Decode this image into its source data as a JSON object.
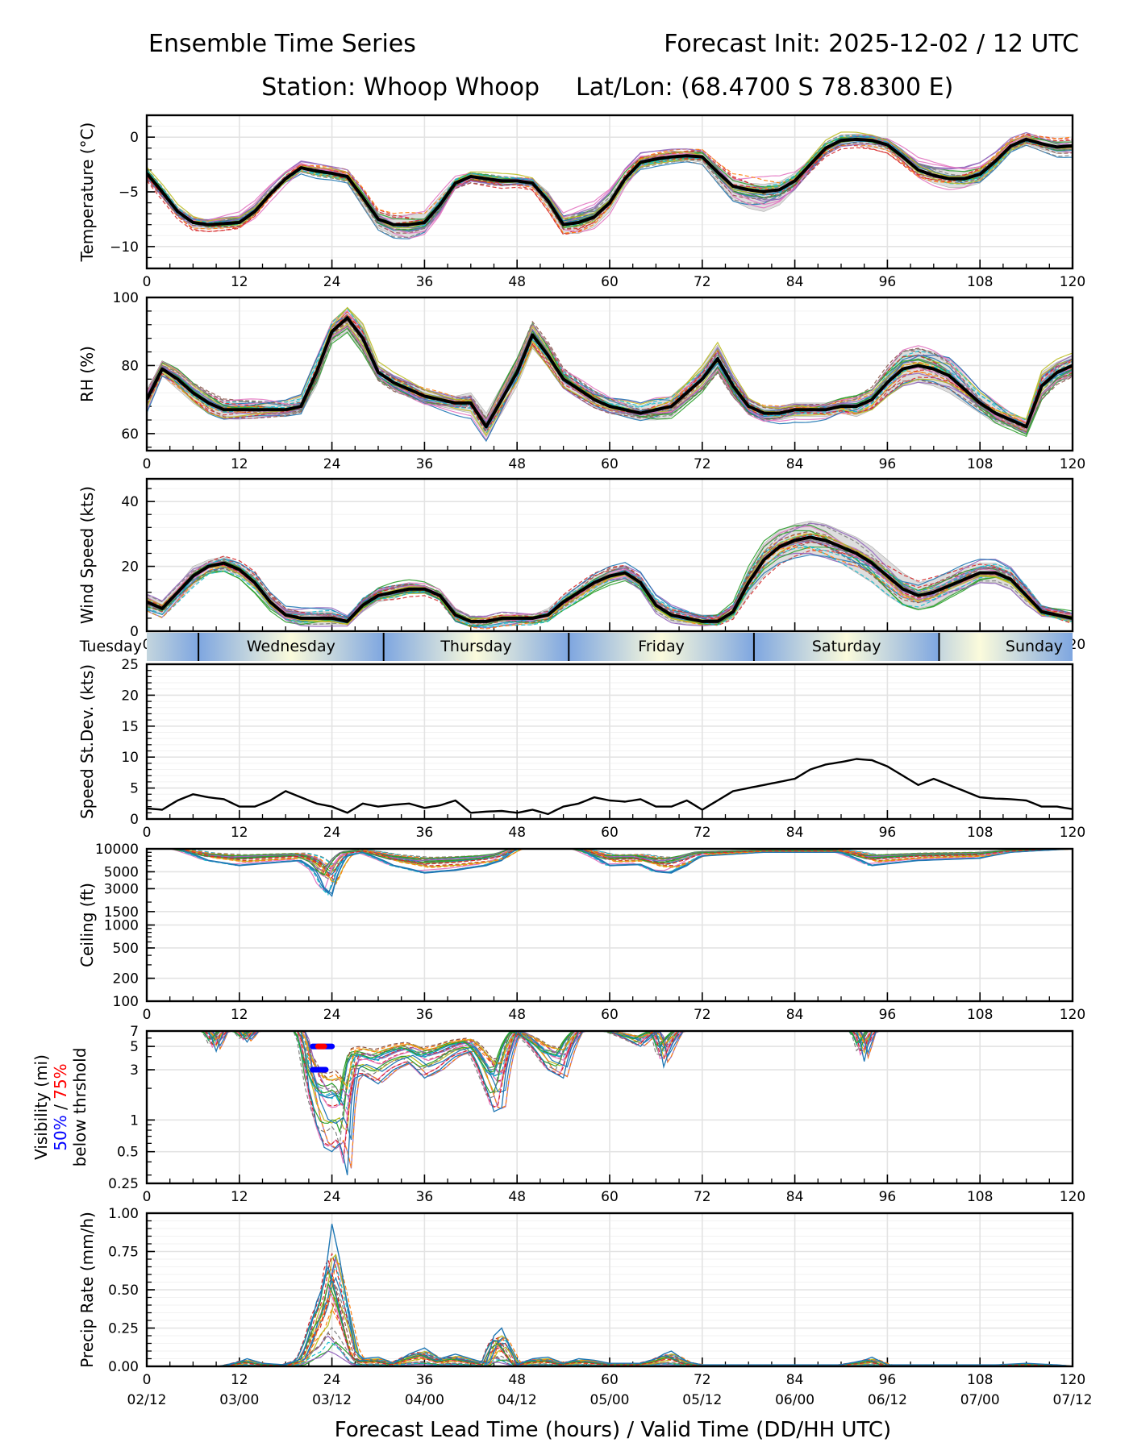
{
  "header": {
    "title_left": "Ensemble Time Series",
    "title_right": "Forecast Init: 2025-12-02 / 12 UTC",
    "station": "Station: Whoop Whoop",
    "latlon": "Lat/Lon: (68.4700 S 78.8300 E)"
  },
  "xaxis": {
    "title": "Forecast Lead Time (hours) / Valid Time (DD/HH UTC)",
    "ticks": [
      0,
      12,
      24,
      36,
      48,
      60,
      72,
      84,
      96,
      108,
      120
    ],
    "tick_labels": [
      "0",
      "12",
      "24",
      "36",
      "48",
      "60",
      "72",
      "84",
      "96",
      "108",
      "120"
    ],
    "valid_labels": [
      "02/12",
      "03/00",
      "03/12",
      "04/00",
      "04/12",
      "05/00",
      "05/12",
      "06/00",
      "06/12",
      "07/00",
      "07/12"
    ],
    "range": [
      0,
      120
    ]
  },
  "day_band": {
    "days": [
      {
        "name": "Tuesday",
        "start": 0,
        "end": 6.7
      },
      {
        "name": "Wednesday",
        "start": 6.7,
        "end": 30.7
      },
      {
        "name": "Thursday",
        "start": 30.7,
        "end": 54.7
      },
      {
        "name": "Friday",
        "start": 54.7,
        "end": 78.7
      },
      {
        "name": "Saturday",
        "start": 78.7,
        "end": 102.7
      },
      {
        "name": "Sunday",
        "start": 102.7,
        "end": 120
      }
    ],
    "night_color": "#7ea6e0",
    "day_color": "#fbfbdc"
  },
  "colors": {
    "mean": "#000000",
    "spread": "#d0d0d0",
    "members": [
      "#1f77b4",
      "#ff7f0e",
      "#2ca02c",
      "#d62728",
      "#9467bd",
      "#8c564b",
      "#e377c2",
      "#7f7f7f",
      "#bcbd22",
      "#17becf"
    ],
    "threshold50": "#0000ff",
    "threshold75": "#ff0000"
  },
  "chart_data": [
    {
      "type": "line",
      "name": "temperature",
      "ylabel": "Temperature (°C)",
      "ylim": [
        -12,
        2
      ],
      "yticks": [
        0,
        -5,
        -10
      ],
      "ytick_labels": [
        "0",
        "−5",
        "−10"
      ],
      "grid": true,
      "x": [
        0,
        2,
        4,
        6,
        8,
        10,
        12,
        14,
        16,
        18,
        20,
        22,
        24,
        26,
        28,
        30,
        32,
        34,
        36,
        38,
        40,
        42,
        44,
        46,
        48,
        50,
        52,
        54,
        56,
        58,
        60,
        62,
        64,
        66,
        68,
        70,
        72,
        74,
        76,
        78,
        80,
        82,
        84,
        86,
        88,
        90,
        92,
        94,
        96,
        98,
        100,
        102,
        104,
        106,
        108,
        110,
        112,
        114,
        116,
        118,
        120
      ],
      "mean": [
        -3.3,
        -5.0,
        -6.8,
        -7.8,
        -8.0,
        -7.9,
        -7.8,
        -6.8,
        -5.2,
        -3.8,
        -2.8,
        -3.1,
        -3.3,
        -3.6,
        -5.5,
        -7.5,
        -8.0,
        -8.0,
        -7.8,
        -6.2,
        -4.2,
        -3.6,
        -3.8,
        -4.0,
        -4.0,
        -4.2,
        -5.8,
        -8.0,
        -7.8,
        -7.3,
        -6.0,
        -3.8,
        -2.3,
        -2.0,
        -1.8,
        -1.7,
        -1.8,
        -3.2,
        -4.5,
        -4.8,
        -5.0,
        -4.8,
        -4.0,
        -2.5,
        -1.0,
        -0.3,
        -0.2,
        -0.3,
        -0.7,
        -1.8,
        -3.0,
        -3.5,
        -3.8,
        -3.8,
        -3.4,
        -2.2,
        -0.8,
        -0.2,
        -0.6,
        -0.9,
        -0.8
      ],
      "spread_low": [
        -3.6,
        -5.4,
        -7.2,
        -8.3,
        -8.4,
        -8.3,
        -8.2,
        -7.1,
        -5.5,
        -4.1,
        -3.0,
        -3.4,
        -3.6,
        -4.0,
        -6.2,
        -8.3,
        -9.0,
        -9.2,
        -8.6,
        -7.0,
        -4.6,
        -3.9,
        -4.1,
        -4.3,
        -4.3,
        -4.6,
        -6.5,
        -8.8,
        -8.8,
        -8.2,
        -6.8,
        -4.4,
        -2.8,
        -2.4,
        -2.2,
        -2.1,
        -2.3,
        -4.0,
        -5.8,
        -6.5,
        -6.8,
        -6.2,
        -4.8,
        -3.0,
        -1.5,
        -0.8,
        -0.7,
        -0.9,
        -1.2,
        -2.3,
        -3.6,
        -4.2,
        -4.6,
        -4.6,
        -4.2,
        -2.7,
        -1.2,
        -0.6,
        -1.1,
        -1.5,
        -1.4
      ],
      "spread_high": [
        -3.0,
        -4.6,
        -6.4,
        -7.3,
        -7.6,
        -7.5,
        -7.4,
        -6.4,
        -4.9,
        -3.5,
        -2.6,
        -2.8,
        -3.0,
        -3.2,
        -4.8,
        -6.8,
        -7.2,
        -7.1,
        -7.0,
        -5.4,
        -3.8,
        -3.3,
        -3.5,
        -3.6,
        -3.7,
        -3.8,
        -5.0,
        -7.2,
        -6.9,
        -6.5,
        -5.2,
        -3.2,
        -1.8,
        -1.6,
        -1.4,
        -1.3,
        -1.3,
        -2.6,
        -3.8,
        -4.2,
        -4.3,
        -4.1,
        -3.3,
        -2.0,
        -0.5,
        0.2,
        0.3,
        0.2,
        -0.2,
        -1.3,
        -2.5,
        -2.9,
        -3.1,
        -3.1,
        -2.7,
        -1.7,
        -0.4,
        0.2,
        -0.2,
        -0.4,
        -0.3
      ]
    },
    {
      "type": "line",
      "name": "relative-humidity",
      "ylabel": "RH (%)",
      "ylim": [
        55,
        100
      ],
      "yticks": [
        100,
        80,
        60
      ],
      "ytick_labels": [
        "100",
        "80",
        "60"
      ],
      "grid": true,
      "x": [
        0,
        2,
        4,
        6,
        8,
        10,
        12,
        14,
        16,
        18,
        20,
        22,
        24,
        26,
        28,
        30,
        32,
        34,
        36,
        38,
        40,
        42,
        44,
        46,
        48,
        50,
        52,
        54,
        56,
        58,
        60,
        62,
        64,
        66,
        68,
        70,
        72,
        74,
        76,
        78,
        80,
        82,
        84,
        86,
        88,
        90,
        92,
        94,
        96,
        98,
        100,
        102,
        104,
        106,
        108,
        110,
        112,
        114,
        116,
        118,
        120
      ],
      "mean": [
        70,
        79,
        76,
        72,
        69,
        67,
        67,
        67,
        67,
        67,
        68,
        78,
        90,
        94,
        88,
        78,
        75,
        73,
        71,
        70,
        69,
        69,
        62,
        70,
        78,
        89,
        83,
        76,
        73,
        70,
        68,
        67,
        66,
        67,
        68,
        72,
        76,
        82,
        74,
        68,
        66,
        66,
        67,
        67,
        67,
        68,
        68,
        70,
        75,
        79,
        80,
        79,
        77,
        73,
        69,
        66,
        64,
        62,
        74,
        78,
        80
      ],
      "spread_low": [
        67,
        77,
        73,
        69,
        66,
        65,
        65,
        65,
        65,
        65,
        66,
        74,
        87,
        90,
        84,
        76,
        73,
        71,
        69,
        68,
        67,
        66,
        59,
        66,
        74,
        85,
        80,
        74,
        71,
        68,
        66,
        65,
        64,
        64,
        65,
        69,
        73,
        78,
        71,
        66,
        64,
        64,
        65,
        65,
        65,
        66,
        65,
        67,
        71,
        74,
        75,
        74,
        72,
        69,
        66,
        63,
        62,
        60,
        70,
        75,
        77
      ],
      "spread_high": [
        73,
        81,
        78,
        74,
        71,
        69,
        69,
        69,
        69,
        69,
        71,
        82,
        93,
        97,
        92,
        80,
        77,
        75,
        73,
        72,
        71,
        72,
        66,
        74,
        82,
        92,
        86,
        78,
        75,
        72,
        70,
        69,
        68,
        70,
        71,
        75,
        80,
        86,
        77,
        70,
        68,
        68,
        69,
        69,
        69,
        70,
        71,
        73,
        79,
        84,
        85,
        84,
        82,
        77,
        72,
        69,
        66,
        64,
        78,
        81,
        83
      ]
    },
    {
      "type": "line",
      "name": "wind-speed",
      "ylabel": "Wind Speed (kts)",
      "ylim": [
        0,
        47
      ],
      "yticks": [
        40,
        20,
        0
      ],
      "ytick_labels": [
        "40",
        "20",
        "0"
      ],
      "grid": true,
      "x": [
        0,
        2,
        4,
        6,
        8,
        10,
        12,
        14,
        16,
        18,
        20,
        22,
        24,
        26,
        28,
        30,
        32,
        34,
        36,
        38,
        40,
        42,
        44,
        46,
        48,
        50,
        52,
        54,
        56,
        58,
        60,
        62,
        64,
        66,
        68,
        70,
        72,
        74,
        76,
        78,
        80,
        82,
        84,
        86,
        88,
        90,
        92,
        94,
        96,
        98,
        100,
        102,
        104,
        106,
        108,
        110,
        112,
        114,
        116,
        118,
        120
      ],
      "mean": [
        9,
        7,
        12,
        17,
        20,
        21,
        19,
        15,
        9,
        5,
        4,
        4,
        4,
        3,
        8,
        11,
        12,
        13,
        13,
        11,
        5,
        3,
        3,
        4,
        4,
        4,
        5,
        9,
        12,
        15,
        17,
        18,
        15,
        8,
        5,
        4,
        3,
        3,
        6,
        15,
        22,
        26,
        28,
        29,
        28,
        26,
        24,
        21,
        17,
        13,
        11,
        12,
        14,
        16,
        18,
        18,
        16,
        11,
        6,
        5,
        4
      ],
      "spread_low": [
        7,
        5,
        9,
        14,
        18,
        19,
        17,
        13,
        7,
        4,
        2,
        2,
        2,
        2,
        6,
        9,
        10,
        12,
        12,
        10,
        4,
        2,
        2,
        2,
        2,
        2,
        4,
        7,
        10,
        13,
        15,
        16,
        13,
        6,
        3,
        2,
        2,
        2,
        4,
        11,
        17,
        21,
        23,
        24,
        23,
        21,
        18,
        15,
        11,
        8,
        7,
        8,
        11,
        13,
        15,
        15,
        13,
        8,
        5,
        4,
        3
      ],
      "spread_high": [
        11,
        9,
        14,
        20,
        22,
        23,
        21,
        18,
        11,
        7,
        6,
        6,
        6,
        4,
        10,
        13,
        14,
        15,
        14,
        12,
        7,
        4,
        4,
        5,
        5,
        5,
        7,
        11,
        14,
        17,
        19,
        20,
        17,
        10,
        7,
        6,
        5,
        5,
        8,
        19,
        27,
        31,
        33,
        34,
        33,
        31,
        29,
        26,
        22,
        18,
        15,
        16,
        18,
        20,
        21,
        21,
        19,
        14,
        8,
        6,
        5
      ]
    },
    {
      "type": "line",
      "name": "speed-stddev",
      "ylabel": "Speed St.Dev. (kts)",
      "ylim": [
        0,
        25
      ],
      "yticks": [
        25,
        20,
        15,
        10,
        5,
        0
      ],
      "ytick_labels": [
        "25",
        "20",
        "15",
        "10",
        "5",
        "0"
      ],
      "grid": true,
      "x": [
        0,
        2,
        4,
        6,
        8,
        10,
        12,
        14,
        16,
        18,
        20,
        22,
        24,
        26,
        28,
        30,
        32,
        34,
        36,
        38,
        40,
        42,
        44,
        46,
        48,
        50,
        52,
        54,
        56,
        58,
        60,
        62,
        64,
        66,
        68,
        70,
        72,
        74,
        76,
        78,
        80,
        82,
        84,
        86,
        88,
        90,
        92,
        94,
        96,
        98,
        100,
        102,
        104,
        106,
        108,
        110,
        112,
        114,
        116,
        118,
        120
      ],
      "mean": [
        1.7,
        1.5,
        3.0,
        4.0,
        3.5,
        3.2,
        2.0,
        2.0,
        3.0,
        4.5,
        3.5,
        2.5,
        2.0,
        1.0,
        2.5,
        2.0,
        2.3,
        2.5,
        1.8,
        2.2,
        3.0,
        1.0,
        1.2,
        1.3,
        1.0,
        1.5,
        0.8,
        2.0,
        2.5,
        3.5,
        3.0,
        2.8,
        3.2,
        2.0,
        2.0,
        3.0,
        1.5,
        3.0,
        4.5,
        5.0,
        5.5,
        6.0,
        6.5,
        8.0,
        8.8,
        9.2,
        9.7,
        9.5,
        8.5,
        7.0,
        5.5,
        6.5,
        5.5,
        4.5,
        3.5,
        3.3,
        3.2,
        3.0,
        2.0,
        2.0,
        1.6
      ]
    },
    {
      "type": "line",
      "name": "ceiling",
      "ylabel": "Ceiling (ft)",
      "yscale": "log",
      "ylim": [
        100,
        10000
      ],
      "yticks": [
        10000,
        5000,
        3000,
        1500,
        1000,
        500,
        200,
        100
      ],
      "ytick_labels": [
        "10000",
        "5000",
        "3000",
        "1500",
        "1000",
        "500",
        "200",
        "100"
      ],
      "grid": true,
      "x": [
        0,
        4,
        8,
        12,
        16,
        20,
        22,
        23,
        24,
        26,
        28,
        32,
        36,
        40,
        44,
        46,
        48,
        56,
        60,
        64,
        66,
        68,
        70,
        72,
        80,
        90,
        94,
        100,
        108,
        112,
        120
      ],
      "member_min": [
        10000,
        10000,
        7000,
        6000,
        6500,
        7000,
        5000,
        3000,
        2400,
        8000,
        9000,
        6000,
        4800,
        5200,
        6000,
        7000,
        10000,
        10000,
        6000,
        6200,
        5000,
        4800,
        6000,
        8000,
        9000,
        9000,
        6000,
        7000,
        7500,
        9000,
        10000
      ]
    },
    {
      "type": "line",
      "name": "visibility",
      "ylabel": "Visibility (mi)",
      "ylabel_line2_blue": "50%",
      "ylabel_line2_sep": " / ",
      "ylabel_line2_red": "75%",
      "ylabel_line3": "below thrshold",
      "yscale": "log",
      "ylim": [
        0.25,
        7
      ],
      "yticks": [
        7,
        5,
        3,
        1,
        0.5,
        0.25
      ],
      "ytick_labels": [
        "7",
        "5",
        "3",
        "1",
        "0.5",
        "0.25"
      ],
      "grid": true,
      "x": [
        0,
        8,
        9,
        10,
        12,
        13,
        14,
        20,
        21,
        22,
        23,
        24,
        25,
        26,
        27,
        28,
        30,
        32,
        34,
        36,
        38,
        40,
        42,
        44,
        45,
        46,
        48,
        50,
        52,
        54,
        56,
        60,
        64,
        66,
        67,
        68,
        69,
        70,
        80,
        92,
        93,
        94,
        96,
        120
      ],
      "member_min": [
        7,
        7,
        4.5,
        7,
        7,
        5.5,
        7,
        7,
        2,
        0.9,
        0.55,
        0.5,
        0.6,
        0.3,
        2.5,
        2.7,
        2.2,
        3,
        3.5,
        2.5,
        3,
        4,
        4.5,
        2.0,
        1.2,
        1.3,
        7,
        5,
        3,
        2.5,
        7,
        7,
        5,
        7,
        3.2,
        5,
        7,
        7,
        7,
        7,
        3.6,
        7,
        7,
        7
      ],
      "threshold_bars": [
        {
          "threshold": 5,
          "start": 21.5,
          "end": 24,
          "percent": 50
        },
        {
          "threshold": 5,
          "start": 22.2,
          "end": 23.0,
          "percent": 75
        },
        {
          "threshold": 3,
          "start": 21.5,
          "end": 23.2,
          "percent": 50
        }
      ]
    },
    {
      "type": "line",
      "name": "precip-rate",
      "ylabel": "Precip Rate (mm/h)",
      "ylim": [
        0,
        1.0
      ],
      "yticks": [
        1.0,
        0.75,
        0.5,
        0.25,
        0.0
      ],
      "ytick_labels": [
        "1.00",
        "0.75",
        "0.50",
        "0.25",
        "0.00"
      ],
      "grid": true,
      "x": [
        0,
        10,
        12,
        13,
        15,
        18,
        20,
        21,
        22,
        23,
        24,
        25,
        26,
        27,
        28,
        30,
        32,
        34,
        36,
        38,
        40,
        42,
        44,
        45,
        46,
        48,
        50,
        52,
        54,
        56,
        58,
        60,
        64,
        66,
        67,
        68,
        70,
        72,
        90,
        93,
        94,
        96,
        110,
        114,
        118,
        120
      ],
      "member_max": [
        0,
        0,
        0.03,
        0.05,
        0.02,
        0.01,
        0.05,
        0.2,
        0.42,
        0.54,
        0.93,
        0.7,
        0.4,
        0.1,
        0.05,
        0.06,
        0.02,
        0.08,
        0.12,
        0.05,
        0.08,
        0.05,
        0.02,
        0.2,
        0.25,
        0.01,
        0.05,
        0.06,
        0.02,
        0.05,
        0.04,
        0.02,
        0.02,
        0.05,
        0.08,
        0.1,
        0.03,
        0.01,
        0.01,
        0.04,
        0.06,
        0.01,
        0.01,
        0.02,
        0.01,
        0
      ]
    }
  ]
}
